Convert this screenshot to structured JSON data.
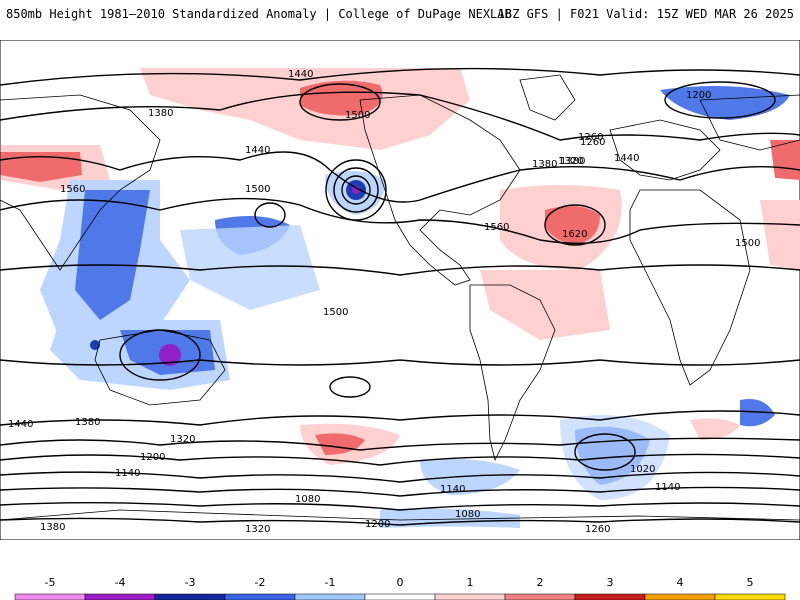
{
  "header": {
    "title": "850mb Height 1981–2010 Standardized Anomaly | College of DuPage NEXLAB",
    "run_info": "18Z GFS | F021 Valid: 15Z WED MAR 26 2025"
  },
  "contour_labels": [
    "1440",
    "1380",
    "1500",
    "1560",
    "1440",
    "1500",
    "1380",
    "1260",
    "1200",
    "1440",
    "1500",
    "1560",
    "1620",
    "1380",
    "1320",
    "1260",
    "1500",
    "1440",
    "1380",
    "1320",
    "1200",
    "1140",
    "1080",
    "1020",
    "1380",
    "1320",
    "1200",
    "1260",
    "1140",
    "1080",
    "1140"
  ],
  "colorbar": {
    "ticks": [
      "-5",
      "-4",
      "-3",
      "-2",
      "-1",
      "0",
      "1",
      "2",
      "3",
      "4",
      "5"
    ],
    "colors": [
      "#f08cf0",
      "#9b1ec8",
      "#1428a0",
      "#3c64e6",
      "#a0c8ff",
      "#ffffff",
      "#ffd2d2",
      "#f08282",
      "#c81e1e",
      "#f0a000",
      "#ffd800"
    ]
  },
  "colors": {
    "neg_light": "#bcd6ff",
    "neg_mid": "#4f78e8",
    "neg_dark": "#1e3cb4",
    "neg_purple": "#9020c8",
    "pos_light": "#ffd0d0",
    "pos_mid": "#f06c6c",
    "pos_dark": "#d02020"
  }
}
